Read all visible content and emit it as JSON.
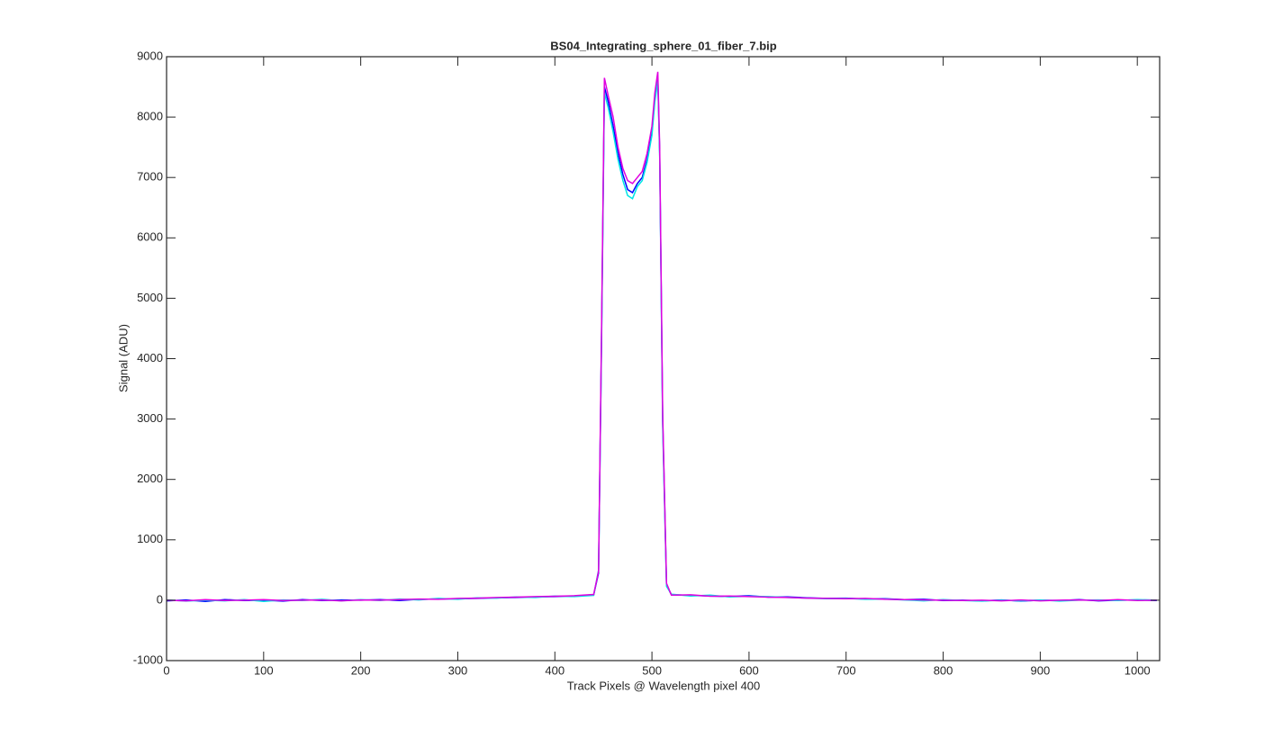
{
  "chart_data": {
    "type": "line",
    "title": "BS04_Integrating_sphere_01_fiber_7.bip",
    "x_label": "Track Pixels @ Wavelength pixel 400",
    "y_label": "Signal (ADU)",
    "xlim": [
      0,
      1023
    ],
    "ylim": [
      -1000,
      9000
    ],
    "xticks": [
      0,
      100,
      200,
      300,
      400,
      500,
      600,
      700,
      800,
      900,
      1000
    ],
    "yticks": [
      -1000,
      0,
      1000,
      2000,
      3000,
      4000,
      5000,
      6000,
      7000,
      8000,
      9000
    ],
    "x": [
      0,
      20,
      40,
      60,
      80,
      100,
      120,
      140,
      160,
      180,
      200,
      220,
      240,
      260,
      280,
      300,
      320,
      340,
      360,
      380,
      400,
      420,
      440,
      445,
      448,
      451,
      455,
      460,
      465,
      470,
      475,
      480,
      485,
      490,
      495,
      500,
      503,
      506,
      508,
      511,
      515,
      520,
      540,
      560,
      580,
      600,
      620,
      640,
      660,
      680,
      700,
      720,
      740,
      760,
      780,
      800,
      820,
      840,
      860,
      880,
      900,
      920,
      940,
      960,
      980,
      1000,
      1020
    ],
    "series": [
      {
        "color": "#0000ff",
        "values": [
          -10,
          5,
          -20,
          10,
          -5,
          0,
          -15,
          10,
          -5,
          5,
          0,
          10,
          -5,
          15,
          20,
          25,
          30,
          40,
          45,
          55,
          60,
          70,
          90,
          450,
          4200,
          8500,
          8250,
          7850,
          7400,
          7050,
          6800,
          6750,
          6900,
          7000,
          7300,
          7750,
          8300,
          8650,
          7400,
          3000,
          250,
          90,
          80,
          70,
          60,
          75,
          50,
          55,
          40,
          30,
          35,
          20,
          25,
          10,
          15,
          -5,
          0,
          -10,
          5,
          -15,
          0,
          -5,
          10,
          -10,
          0,
          5,
          -5
        ]
      },
      {
        "color": "#00e5e5",
        "values": [
          5,
          -15,
          0,
          -10,
          10,
          -20,
          5,
          -5,
          15,
          -10,
          10,
          -5,
          20,
          5,
          30,
          15,
          40,
          35,
          55,
          45,
          70,
          60,
          80,
          500,
          4100,
          8400,
          8150,
          7750,
          7300,
          6950,
          6700,
          6650,
          6850,
          6950,
          7250,
          7700,
          8250,
          8600,
          7350,
          2900,
          230,
          100,
          70,
          85,
          55,
          65,
          60,
          45,
          35,
          25,
          30,
          15,
          20,
          5,
          -10,
          10,
          -5,
          -15,
          0,
          -10,
          5,
          -15,
          0,
          5,
          -5,
          10,
          0
        ]
      },
      {
        "color": "#e000e0",
        "values": [
          0,
          -10,
          10,
          -5,
          0,
          10,
          -5,
          0,
          5,
          -10,
          5,
          0,
          10,
          20,
          15,
          30,
          35,
          45,
          50,
          60,
          65,
          75,
          95,
          480,
          4300,
          8650,
          8350,
          8000,
          7500,
          7150,
          6950,
          6900,
          7000,
          7100,
          7400,
          7850,
          8400,
          8750,
          7500,
          3100,
          280,
          85,
          90,
          65,
          70,
          60,
          50,
          45,
          35,
          30,
          25,
          30,
          15,
          10,
          5,
          0,
          -5,
          0,
          -10,
          5,
          -10,
          0,
          5,
          -5,
          10,
          -5,
          0
        ]
      }
    ]
  }
}
